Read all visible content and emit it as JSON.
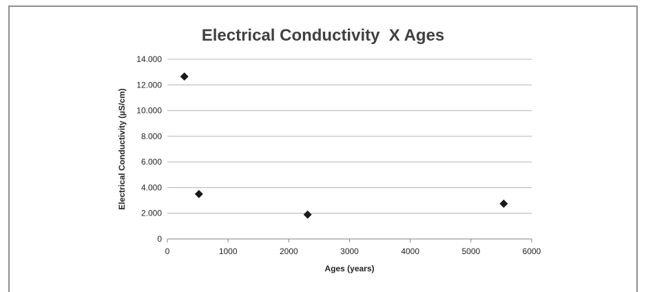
{
  "chart_data": {
    "type": "scatter",
    "title": "Electrical Conductivity  X Ages",
    "xlabel": "Ages (years)",
    "ylabel": "Electrical Conductivity (µS/cm)",
    "xlim": [
      0,
      6000
    ],
    "ylim": [
      0,
      14000
    ],
    "x_ticks": [
      "0",
      "1000",
      "2000",
      "3000",
      "4000",
      "5000",
      "6000"
    ],
    "y_ticks": [
      "0",
      "2.000",
      "4.000",
      "6.000",
      "8.000",
      "10.000",
      "12.000",
      "14.000"
    ],
    "grid": true,
    "legend": "none",
    "marker": "diamond",
    "colors": {
      "marker": "#1a1a1a",
      "grid": "#b0b0b0",
      "frame": "#8c8c8c",
      "title": "#404040"
    },
    "series": [
      {
        "x": [
          280,
          520,
          2310,
          5540
        ],
        "y": [
          12650,
          3500,
          1900,
          2750
        ]
      }
    ]
  }
}
